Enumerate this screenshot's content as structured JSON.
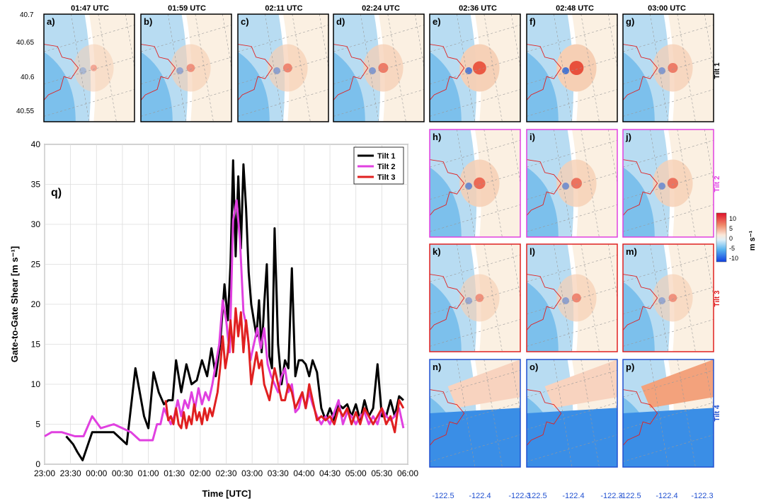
{
  "panel_times": [
    "01:47 UTC",
    "01:59 UTC",
    "02:11 UTC",
    "02:24 UTC",
    "02:36 UTC",
    "02:48 UTC",
    "03:00 UTC"
  ],
  "panel_letters": [
    "a)",
    "b)",
    "c)",
    "d)",
    "e)",
    "f)",
    "g)",
    "h)",
    "i)",
    "j)",
    "k)",
    "l)",
    "m)",
    "n)",
    "o)",
    "p)",
    "q)"
  ],
  "tilt_labels": [
    "Tilt 1",
    "Tilt 2",
    "Tilt 3",
    "Tilt 4"
  ],
  "tilt_colors": [
    "#000000",
    "#e040e0",
    "#e02020",
    "#2050d0"
  ],
  "lat_ticks": [
    "40.7",
    "40.65",
    "40.6",
    "40.55"
  ],
  "lon_ticks": [
    "-122.5",
    "-122.4",
    "-122.3"
  ],
  "colorbar": {
    "ticks": [
      "10",
      "5",
      "0",
      "-5",
      "-10"
    ],
    "label": "m s⁻¹",
    "range": [
      -12,
      12
    ]
  },
  "chart_data": {
    "type": "line",
    "xlabel": "Time [UTC]",
    "ylabel": "Gate-to-Gate Shear [m s⁻¹]",
    "panel_label": "q)",
    "x_tick_labels": [
      "23:00",
      "23:30",
      "00:00",
      "00:30",
      "01:00",
      "01:30",
      "02:00",
      "02:30",
      "03:00",
      "03:30",
      "04:00",
      "04:30",
      "05:00",
      "05:30",
      "06:00"
    ],
    "x_unit": "minutes after 23:00 UTC",
    "xlim": [
      0,
      420
    ],
    "ylim": [
      0,
      40
    ],
    "y_ticks": [
      0,
      5,
      10,
      15,
      20,
      25,
      30,
      35,
      40
    ],
    "grid": true,
    "legend_position": "top-right",
    "series": [
      {
        "name": "Tilt 1",
        "color": "#000000",
        "x": [
          25,
          33,
          38,
          44,
          55,
          70,
          80,
          85,
          95,
          105,
          115,
          120,
          126,
          132,
          138,
          143,
          148,
          152,
          158,
          164,
          170,
          176,
          182,
          188,
          193,
          198,
          203,
          208,
          212,
          215,
          218,
          221,
          224,
          227,
          230,
          233,
          236,
          239,
          242,
          245,
          248,
          251,
          254,
          257,
          260,
          263,
          266,
          270,
          274,
          278,
          282,
          286,
          290,
          294,
          298,
          302,
          306,
          310,
          315,
          320,
          325,
          330,
          335,
          340,
          345,
          350,
          355,
          360,
          365,
          370,
          375,
          380,
          385,
          390,
          395,
          400,
          405,
          410,
          415
        ],
        "y": [
          3.5,
          2.5,
          1.5,
          0.5,
          4,
          4,
          4,
          3.5,
          2.5,
          12,
          6,
          4.5,
          11.5,
          9,
          7.5,
          8,
          8,
          13,
          9,
          12.5,
          10,
          10.5,
          13,
          11,
          14.5,
          11,
          15,
          22.5,
          18,
          25,
          38,
          26,
          36,
          27,
          37.5,
          32,
          24,
          20,
          18,
          16,
          20.5,
          14,
          20,
          25,
          13.5,
          12,
          29.5,
          15,
          10,
          13,
          12,
          24.5,
          11,
          13,
          13,
          12.5,
          11,
          13,
          11.5,
          7,
          5.5,
          7,
          5.5,
          7.5,
          7,
          7.5,
          6,
          7.5,
          5.5,
          8,
          6,
          7,
          12.5,
          6,
          6,
          8,
          6,
          8.5,
          8
        ]
      },
      {
        "name": "Tilt 2",
        "color": "#e040e0",
        "x": [
          0,
          8,
          20,
          35,
          45,
          55,
          65,
          80,
          90,
          100,
          110,
          125,
          130,
          134,
          138,
          142,
          146,
          150,
          154,
          158,
          162,
          166,
          170,
          174,
          178,
          182,
          186,
          190,
          194,
          198,
          202,
          206,
          210,
          214,
          218,
          222,
          226,
          230,
          234,
          238,
          242,
          246,
          250,
          254,
          258,
          262,
          266,
          270,
          274,
          278,
          282,
          286,
          290,
          294,
          298,
          302,
          306,
          310,
          315,
          320,
          325,
          330,
          335,
          340,
          345,
          350,
          355,
          360,
          365,
          370,
          375,
          380,
          385,
          390,
          395,
          400,
          405,
          410,
          415
        ],
        "y": [
          3.5,
          4,
          4,
          3.5,
          3.5,
          6,
          4.5,
          5,
          4.5,
          4,
          3,
          3,
          5,
          5,
          7,
          6,
          5,
          6,
          8,
          6,
          8,
          7,
          9,
          7,
          9.5,
          7.5,
          9,
          8,
          10,
          12.5,
          15,
          20.5,
          18,
          14,
          30.5,
          33,
          28,
          19,
          17,
          13,
          15,
          17,
          14.5,
          17,
          12.5,
          11,
          10,
          9,
          11,
          12,
          9,
          10,
          6.5,
          7,
          9,
          7,
          9,
          7.5,
          6,
          5,
          6,
          5,
          6.5,
          8,
          5,
          6.5,
          6,
          5,
          6,
          6.5,
          5,
          6,
          5,
          7,
          6,
          5.5,
          6,
          7,
          4.5
        ]
      },
      {
        "name": "Tilt 3",
        "color": "#e02020",
        "x": [
          140,
          143,
          146,
          149,
          152,
          155,
          158,
          161,
          164,
          167,
          170,
          173,
          176,
          179,
          182,
          185,
          188,
          191,
          194,
          197,
          200,
          203,
          206,
          209,
          212,
          215,
          218,
          221,
          224,
          227,
          230,
          233,
          236,
          239,
          242,
          245,
          248,
          251,
          254,
          257,
          260,
          263,
          266,
          270,
          274,
          278,
          282,
          286,
          290,
          294,
          298,
          302,
          306,
          310,
          315,
          320,
          325,
          330,
          335,
          340,
          345,
          350,
          355,
          360,
          365,
          370,
          375,
          380,
          385,
          390,
          395,
          400,
          405,
          410,
          415
        ],
        "y": [
          8,
          5.5,
          6,
          5,
          7,
          5,
          4.5,
          6.5,
          4.5,
          6,
          5,
          7.5,
          5.5,
          6.5,
          5,
          7,
          5.5,
          7,
          6,
          7.5,
          9,
          12,
          16,
          12,
          14,
          18,
          14,
          19.5,
          16,
          19,
          14,
          18,
          15,
          10,
          12,
          14,
          12,
          13,
          10,
          9,
          8,
          10,
          12,
          10,
          8,
          8,
          10,
          9,
          7,
          8,
          9,
          7,
          10,
          8,
          5.5,
          6,
          5.5,
          6,
          5,
          7,
          6,
          7,
          5,
          6.5,
          5,
          7,
          6,
          5,
          6,
          7,
          5,
          6,
          4,
          8,
          7
        ]
      }
    ]
  }
}
